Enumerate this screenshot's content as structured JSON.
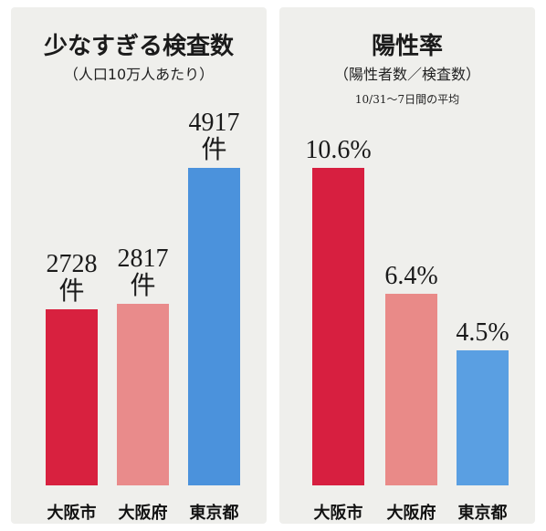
{
  "chart_data": [
    {
      "type": "bar",
      "title": "少なすぎる検査数",
      "subtitle": "（人口10万人あたり）",
      "categories": [
        "大阪市",
        "大阪府",
        "東京都"
      ],
      "values": [
        2728,
        2817,
        4917
      ],
      "value_labels": [
        "2728件",
        "2817件",
        "4917件"
      ],
      "colors": [
        "#d8213f",
        "#e98b8b",
        "#4b92dc"
      ]
    },
    {
      "type": "bar",
      "title": "陽性率",
      "subtitle": "（陽性者数／検査数）",
      "note": "10/31～7日間の平均",
      "categories": [
        "大阪市",
        "大阪府",
        "東京都"
      ],
      "values": [
        10.6,
        6.4,
        4.5
      ],
      "value_labels": [
        "10.6%",
        "6.4%",
        "4.5%"
      ],
      "colors": [
        "#d71f40",
        "#e98a88",
        "#5a9fe2"
      ]
    }
  ]
}
